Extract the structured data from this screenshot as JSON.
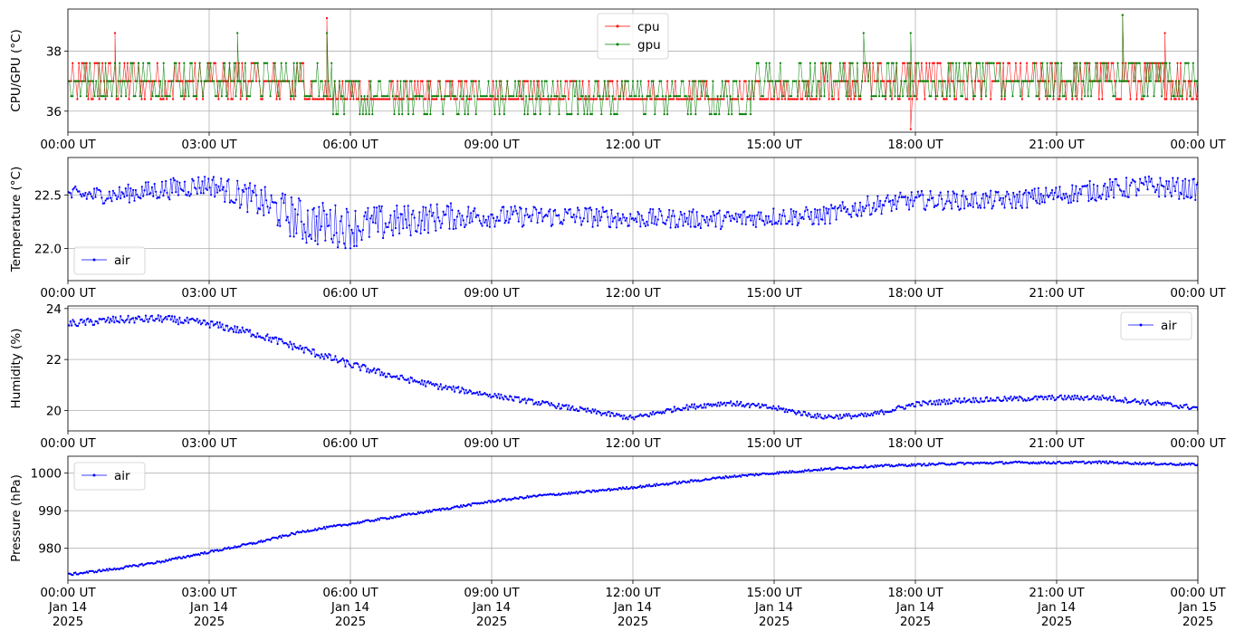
{
  "chart_data": [
    {
      "type": "line",
      "ylabel": "CPU/GPU (°C)",
      "yticks": [
        36,
        38
      ],
      "ylim": [
        35.3,
        39.4
      ],
      "xlim_hours": [
        0,
        24
      ],
      "xtick_labels": [
        "00:00 UT",
        "03:00 UT",
        "06:00 UT",
        "09:00 UT",
        "12:00 UT",
        "15:00 UT",
        "18:00 UT",
        "21:00 UT",
        "00:00 UT"
      ],
      "grid": true,
      "legend": "top-center",
      "series": [
        {
          "name": "cpu",
          "color": "#ff0000",
          "levels": [
            36.4,
            37.0,
            37.6
          ],
          "spikes": [
            [
              1.0,
              38.6
            ],
            [
              5.5,
              39.1
            ],
            [
              17.9,
              35.4
            ],
            [
              22.4,
              39.2
            ],
            [
              23.3,
              38.6
            ]
          ],
          "approx_values": {
            "hours": [
              0,
              3,
              6,
              9,
              12,
              15,
              18,
              21,
              24
            ],
            "values": [
              36.8,
              36.9,
              36.6,
              36.5,
              36.5,
              36.6,
              36.9,
              36.9,
              36.8
            ]
          }
        },
        {
          "name": "gpu",
          "color": "#008000",
          "levels": [
            35.9,
            36.5,
            37.0,
            37.6
          ],
          "spikes": [
            [
              3.6,
              38.6
            ],
            [
              5.5,
              38.6
            ],
            [
              16.9,
              38.6
            ],
            [
              17.9,
              38.6
            ],
            [
              22.4,
              39.2
            ]
          ],
          "approx_values": {
            "hours": [
              0,
              3,
              6,
              9,
              12,
              15,
              18,
              21,
              24
            ],
            "values": [
              37.1,
              37.1,
              36.7,
              36.5,
              36.5,
              36.8,
              37.1,
              37.1,
              37.1
            ]
          }
        }
      ]
    },
    {
      "type": "line",
      "ylabel": "Temperature (°C)",
      "yticks": [
        22.0,
        22.5
      ],
      "ylim": [
        21.7,
        22.85
      ],
      "xlim_hours": [
        0,
        24
      ],
      "xtick_labels": [
        "00:00 UT",
        "03:00 UT",
        "06:00 UT",
        "09:00 UT",
        "12:00 UT",
        "15:00 UT",
        "18:00 UT",
        "21:00 UT",
        "00:00 UT"
      ],
      "grid": true,
      "legend": "bottom-left",
      "series": [
        {
          "name": "air",
          "color": "#0000ff",
          "hours": [
            0,
            1,
            2,
            3,
            4,
            5,
            6,
            7,
            8,
            9,
            10,
            11,
            12,
            13,
            14,
            15,
            16,
            17,
            18,
            19,
            20,
            21,
            22,
            23,
            24
          ],
          "values": [
            22.5,
            22.5,
            22.55,
            22.6,
            22.45,
            22.25,
            22.2,
            22.25,
            22.3,
            22.3,
            22.3,
            22.3,
            22.28,
            22.28,
            22.27,
            22.3,
            22.3,
            22.4,
            22.45,
            22.45,
            22.45,
            22.5,
            22.55,
            22.58,
            22.55
          ],
          "noise": [
            0.08,
            0.08,
            0.1,
            0.1,
            0.15,
            0.22,
            0.2,
            0.16,
            0.13,
            0.1,
            0.1,
            0.1,
            0.09,
            0.09,
            0.09,
            0.09,
            0.09,
            0.09,
            0.09,
            0.09,
            0.09,
            0.09,
            0.1,
            0.1,
            0.1
          ]
        }
      ]
    },
    {
      "type": "line",
      "ylabel": "Humidity (%)",
      "yticks": [
        20,
        22,
        24
      ],
      "ylim": [
        19.2,
        24.1
      ],
      "xlim_hours": [
        0,
        24
      ],
      "xtick_labels": [
        "00:00 UT",
        "03:00 UT",
        "06:00 UT",
        "09:00 UT",
        "12:00 UT",
        "15:00 UT",
        "18:00 UT",
        "21:00 UT",
        "00:00 UT"
      ],
      "grid": true,
      "legend": "top-right",
      "series": [
        {
          "name": "air",
          "color": "#0000ff",
          "hours": [
            0,
            1,
            2,
            3,
            4,
            5,
            6,
            7,
            8,
            9,
            10,
            11,
            12,
            13,
            14,
            15,
            16,
            17,
            18,
            19,
            20,
            21,
            22,
            23,
            24
          ],
          "values": [
            23.4,
            23.55,
            23.6,
            23.4,
            23.0,
            22.4,
            21.8,
            21.3,
            20.9,
            20.6,
            20.3,
            20.0,
            19.7,
            20.1,
            20.3,
            20.1,
            19.75,
            19.8,
            20.25,
            20.4,
            20.45,
            20.5,
            20.5,
            20.3,
            20.1
          ],
          "noise": [
            0.15,
            0.15,
            0.15,
            0.15,
            0.15,
            0.15,
            0.15,
            0.12,
            0.12,
            0.1,
            0.1,
            0.1,
            0.1,
            0.1,
            0.1,
            0.1,
            0.1,
            0.1,
            0.1,
            0.1,
            0.1,
            0.1,
            0.1,
            0.1,
            0.1
          ]
        }
      ]
    },
    {
      "type": "line",
      "ylabel": "Pressure (hPa)",
      "yticks": [
        980,
        990,
        1000
      ],
      "ylim": [
        971.5,
        1004.5
      ],
      "xlim_hours": [
        0,
        24
      ],
      "xtick_labels": [
        "00:00 UT\nJan 14\n2025",
        "03:00 UT\nJan 14\n2025",
        "06:00 UT\nJan 14\n2025",
        "09:00 UT\nJan 14\n2025",
        "12:00 UT\nJan 14\n2025",
        "15:00 UT\nJan 14\n2025",
        "18:00 UT\nJan 14\n2025",
        "21:00 UT\nJan 14\n2025",
        "00:00 UT\nJan 15\n2025"
      ],
      "grid": true,
      "legend": "top-left",
      "series": [
        {
          "name": "air",
          "color": "#0000ff",
          "hours": [
            0,
            1,
            2,
            3,
            4,
            5,
            6,
            7,
            8,
            9,
            10,
            11,
            12,
            13,
            14,
            15,
            16,
            17,
            18,
            19,
            20,
            21,
            22,
            23,
            24
          ],
          "values": [
            973.0,
            974.5,
            976.5,
            979.0,
            981.5,
            984.5,
            986.5,
            988.5,
            990.5,
            992.5,
            994.0,
            995.0,
            996.2,
            997.5,
            999.0,
            1000.0,
            1001.0,
            1001.8,
            1002.2,
            1002.6,
            1002.8,
            1002.8,
            1002.9,
            1002.5,
            1002.3
          ],
          "noise": [
            0.3,
            0.3,
            0.3,
            0.3,
            0.3,
            0.3,
            0.3,
            0.3,
            0.3,
            0.3,
            0.3,
            0.3,
            0.3,
            0.3,
            0.3,
            0.3,
            0.3,
            0.3,
            0.3,
            0.3,
            0.3,
            0.3,
            0.3,
            0.3,
            0.3
          ]
        }
      ]
    }
  ]
}
